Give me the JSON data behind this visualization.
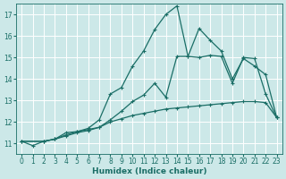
{
  "xlabel": "Humidex (Indice chaleur)",
  "xlim": [
    -0.5,
    23.5
  ],
  "ylim": [
    10.5,
    17.5
  ],
  "yticks": [
    11,
    12,
    13,
    14,
    15,
    16,
    17
  ],
  "xticks": [
    0,
    1,
    2,
    3,
    4,
    5,
    6,
    7,
    8,
    9,
    10,
    11,
    12,
    13,
    14,
    15,
    16,
    17,
    18,
    19,
    20,
    21,
    22,
    23
  ],
  "bg_color": "#cce8e8",
  "line_color": "#1a6e66",
  "grid_color": "#ffffff",
  "line1_x": [
    0,
    1,
    2,
    3,
    4,
    5,
    6,
    7,
    8,
    9,
    10,
    11,
    12,
    13,
    14,
    15,
    16,
    17,
    18,
    19,
    20,
    21,
    22,
    23
  ],
  "line1_y": [
    11.1,
    10.9,
    11.1,
    11.2,
    11.35,
    11.5,
    11.6,
    11.75,
    12.0,
    12.15,
    12.3,
    12.4,
    12.5,
    12.6,
    12.65,
    12.7,
    12.75,
    12.8,
    12.85,
    12.9,
    12.95,
    12.95,
    12.9,
    12.2
  ],
  "line2_x": [
    0,
    2,
    3,
    4,
    5,
    6,
    7,
    8,
    9,
    10,
    11,
    12,
    13,
    14,
    15,
    16,
    17,
    18,
    19,
    20,
    21,
    22,
    23
  ],
  "line2_y": [
    11.1,
    11.1,
    11.2,
    11.5,
    11.55,
    11.7,
    12.1,
    13.3,
    13.6,
    14.6,
    15.3,
    16.3,
    17.0,
    17.4,
    15.05,
    16.35,
    15.8,
    15.3,
    14.0,
    14.95,
    14.6,
    14.2,
    12.2
  ],
  "line3_x": [
    0,
    2,
    3,
    4,
    5,
    6,
    7,
    8,
    9,
    10,
    11,
    12,
    13,
    14,
    15,
    16,
    17,
    18,
    19,
    20,
    21,
    22,
    23
  ],
  "line3_y": [
    11.1,
    11.1,
    11.2,
    11.4,
    11.55,
    11.65,
    11.75,
    12.1,
    12.5,
    12.95,
    13.25,
    13.8,
    13.15,
    15.05,
    15.05,
    15.0,
    15.1,
    15.05,
    13.8,
    15.0,
    14.95,
    13.3,
    12.2
  ],
  "marker": "+",
  "markersize": 3.5,
  "linewidth": 0.9,
  "label_fontsize": 6.5,
  "tick_fontsize": 5.5
}
